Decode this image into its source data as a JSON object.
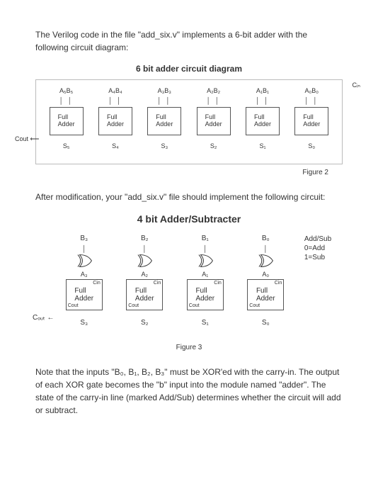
{
  "intro": "The Verilog code in the file \"add_six.v\" implements a 6-bit adder with the following circuit diagram:",
  "fig2": {
    "title": "6 bit adder circuit diagram",
    "cols": [
      {
        "top": "A₅B₅",
        "s": "S₅"
      },
      {
        "top": "A₄B₄",
        "s": "S₄"
      },
      {
        "top": "A₃B₃",
        "s": "S₃"
      },
      {
        "top": "A₂B₂",
        "s": "S₂"
      },
      {
        "top": "A₁B₁",
        "s": "S₁"
      },
      {
        "top": "A₀B₀",
        "s": "S₀"
      }
    ],
    "block": "Full Adder",
    "cout": "Cout ⟵",
    "cin": "Cᵢₙ",
    "caption": "Figure 2"
  },
  "mid": "After modification, your \"add_six.v\" file should implement the following circuit:",
  "fig3": {
    "title": "4 bit Adder/Subtracter",
    "cols": [
      {
        "b": "B₃",
        "a": "A₃",
        "s": "S₃"
      },
      {
        "b": "B₂",
        "a": "A₂",
        "s": "S₂"
      },
      {
        "b": "B₁",
        "a": "A₁",
        "s": "S₁"
      },
      {
        "b": "B₀",
        "a": "A₀",
        "s": "S₀"
      }
    ],
    "block": "Full Adder",
    "cin_lbl": "Cin",
    "cout_lbl": "Cout",
    "cout": "Cₒᵤₜ ←",
    "addsub": "Add/Sub\n0=Add\n1=Sub",
    "caption": "Figure 3"
  },
  "note": "Note that the inputs \"B₀, B₁, B₂, B₃\" must be XOR'ed with the carry-in. The output of each XOR gate becomes the \"b\" input into the module named \"adder\". The state of the carry-in line (marked Add/Sub) determines whether the circuit will add or subtract."
}
